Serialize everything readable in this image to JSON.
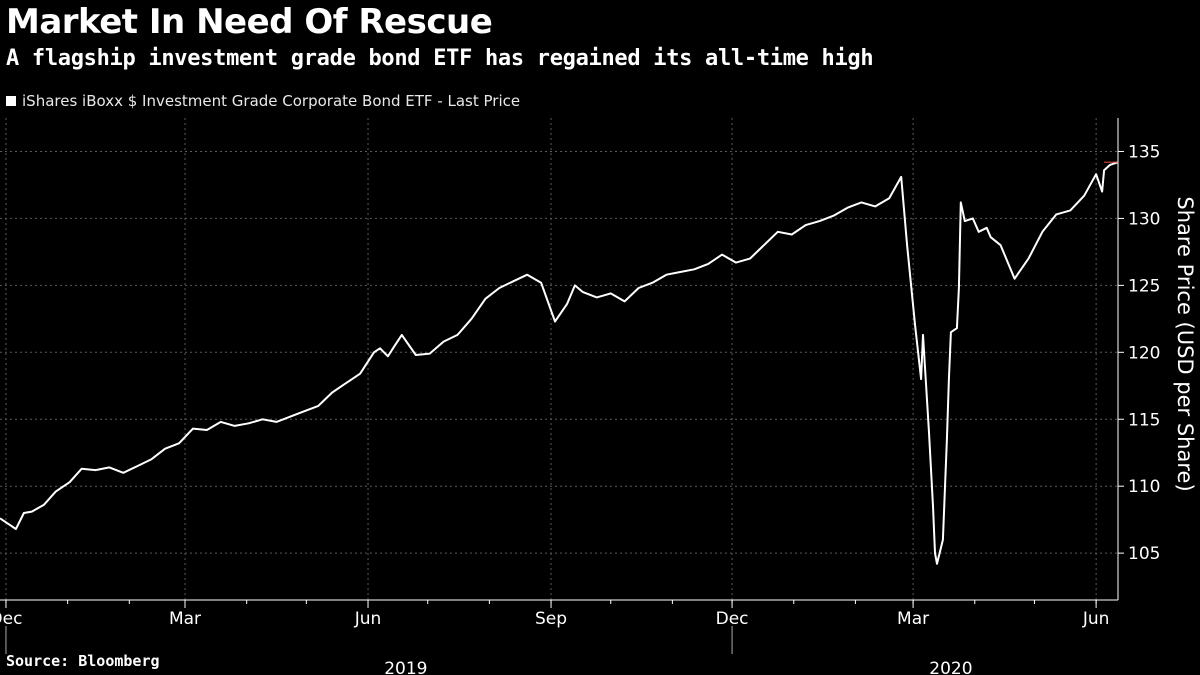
{
  "title": "Market In Need Of Rescue",
  "subtitle": "A flagship investment grade bond ETF has regained its all-time high",
  "source": "Source: Bloomberg",
  "colors": {
    "background": "#000000",
    "line": "#ffffff",
    "last_price_marker": "#e8534a",
    "grid": "#5a5a5a"
  },
  "chart_data": {
    "type": "line",
    "title": "Market In Need Of Rescue",
    "subtitle": "A flagship investment grade bond ETF has regained its all-time high",
    "ylabel": "Share Price (USD per Share)",
    "ylim": [
      101.5,
      137.5
    ],
    "y_ticks": [
      105,
      110,
      115,
      120,
      125,
      130,
      135
    ],
    "xlim": [
      "2018-11-28",
      "2020-06-12"
    ],
    "x_ticks": [
      {
        "date": "2018-12-01",
        "label": "Dec"
      },
      {
        "date": "2019-03-01",
        "label": "Mar"
      },
      {
        "date": "2019-06-01",
        "label": "Jun"
      },
      {
        "date": "2019-09-01",
        "label": "Sep"
      },
      {
        "date": "2019-12-01",
        "label": "Dec"
      },
      {
        "date": "2020-03-01",
        "label": "Mar"
      },
      {
        "date": "2020-06-01",
        "label": "Jun"
      }
    ],
    "year_labels": [
      "2019",
      "2020"
    ],
    "grid": true,
    "legend_position": "top-left",
    "series": [
      {
        "name": "iShares iBoxx $ Investment Grade Corporate Bond ETF - Last Price",
        "x": [
          "2018-11-28",
          "2018-12-02",
          "2018-12-06",
          "2018-12-10",
          "2018-12-14",
          "2018-12-20",
          "2018-12-26",
          "2019-01-02",
          "2019-01-08",
          "2019-01-15",
          "2019-01-22",
          "2019-01-29",
          "2019-02-05",
          "2019-02-12",
          "2019-02-19",
          "2019-02-26",
          "2019-03-05",
          "2019-03-12",
          "2019-03-19",
          "2019-03-26",
          "2019-04-02",
          "2019-04-09",
          "2019-04-16",
          "2019-04-23",
          "2019-04-30",
          "2019-05-07",
          "2019-05-14",
          "2019-05-21",
          "2019-05-28",
          "2019-06-04",
          "2019-06-07",
          "2019-06-11",
          "2019-06-14",
          "2019-06-18",
          "2019-06-25",
          "2019-07-02",
          "2019-07-09",
          "2019-07-16",
          "2019-07-23",
          "2019-07-30",
          "2019-08-06",
          "2019-08-13",
          "2019-08-20",
          "2019-08-27",
          "2019-09-03",
          "2019-09-09",
          "2019-09-13",
          "2019-09-17",
          "2019-09-24",
          "2019-10-01",
          "2019-10-08",
          "2019-10-15",
          "2019-10-22",
          "2019-10-29",
          "2019-11-05",
          "2019-11-12",
          "2019-11-19",
          "2019-11-26",
          "2019-12-03",
          "2019-12-10",
          "2019-12-17",
          "2019-12-24",
          "2019-12-31",
          "2020-01-07",
          "2020-01-14",
          "2020-01-21",
          "2020-01-28",
          "2020-02-04",
          "2020-02-11",
          "2020-02-18",
          "2020-02-24",
          "2020-02-27",
          "2020-03-02",
          "2020-03-05",
          "2020-03-06",
          "2020-03-09",
          "2020-03-11",
          "2020-03-12",
          "2020-03-13",
          "2020-03-16",
          "2020-03-18",
          "2020-03-19",
          "2020-03-20",
          "2020-03-23",
          "2020-03-24",
          "2020-03-25",
          "2020-03-27",
          "2020-03-31",
          "2020-04-03",
          "2020-04-07",
          "2020-04-09",
          "2020-04-14",
          "2020-04-21",
          "2020-04-28",
          "2020-05-05",
          "2020-05-12",
          "2020-05-19",
          "2020-05-26",
          "2020-06-01",
          "2020-06-04",
          "2020-06-05",
          "2020-06-08",
          "2020-06-12"
        ],
        "y": [
          107.6,
          107.2,
          106.8,
          108.0,
          108.1,
          108.6,
          109.6,
          110.3,
          111.3,
          111.2,
          111.4,
          111.0,
          111.5,
          112.0,
          112.8,
          113.2,
          114.3,
          114.2,
          114.8,
          114.5,
          114.7,
          115.0,
          114.8,
          115.2,
          115.6,
          116.0,
          117.0,
          117.7,
          118.4,
          120.0,
          120.3,
          119.7,
          120.4,
          121.3,
          119.8,
          119.9,
          120.8,
          121.3,
          122.5,
          124.0,
          124.8,
          125.3,
          125.8,
          125.2,
          122.3,
          123.6,
          125.0,
          124.5,
          124.1,
          124.4,
          123.8,
          124.8,
          125.2,
          125.8,
          126.0,
          126.2,
          126.6,
          127.3,
          126.7,
          127.0,
          128.0,
          129.0,
          128.8,
          129.5,
          129.8,
          130.2,
          130.8,
          131.2,
          130.9,
          131.5,
          133.1,
          128.0,
          122.0,
          118.0,
          121.3,
          114.0,
          108.5,
          105.0,
          104.2,
          106.0,
          113.5,
          118.0,
          121.5,
          121.8,
          124.8,
          131.2,
          129.8,
          130.0,
          129.0,
          129.3,
          128.6,
          128.0,
          125.5,
          127.0,
          129.0,
          130.3,
          130.6,
          131.7,
          133.3,
          132.0,
          133.6,
          134.0,
          134.2
        ]
      }
    ]
  }
}
